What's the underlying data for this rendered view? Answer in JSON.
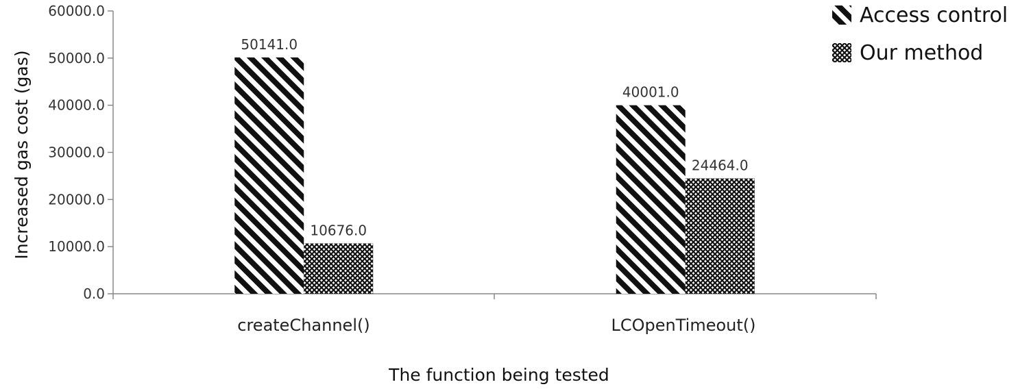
{
  "chart_data": {
    "type": "bar",
    "categories": [
      "createChannel()",
      "LCOpenTimeout()"
    ],
    "series": [
      {
        "name": "Access control",
        "values": [
          50141.0,
          40001.0
        ],
        "data_labels": [
          "50141.0",
          "40001.0"
        ],
        "pattern": "diagonal-stripes"
      },
      {
        "name": "Our method",
        "values": [
          10676.0,
          24464.0
        ],
        "data_labels": [
          "10676.0",
          "24464.0"
        ],
        "pattern": "crosshatch"
      }
    ],
    "title": "",
    "xlabel": "The function being tested",
    "ylabel": "Increased gas cost (gas)",
    "ylim": [
      0,
      60000
    ],
    "yticks": [
      0,
      10000,
      20000,
      30000,
      40000,
      50000,
      60000
    ],
    "ytick_labels": [
      "0.0",
      "10000.0",
      "20000.0",
      "30000.0",
      "40000.0",
      "50000.0",
      "60000.0"
    ],
    "grid": false,
    "legend_position": "top-right",
    "colors": {
      "bar_fill": "#111111",
      "background": "#ffffff",
      "axis": "#888888"
    }
  }
}
